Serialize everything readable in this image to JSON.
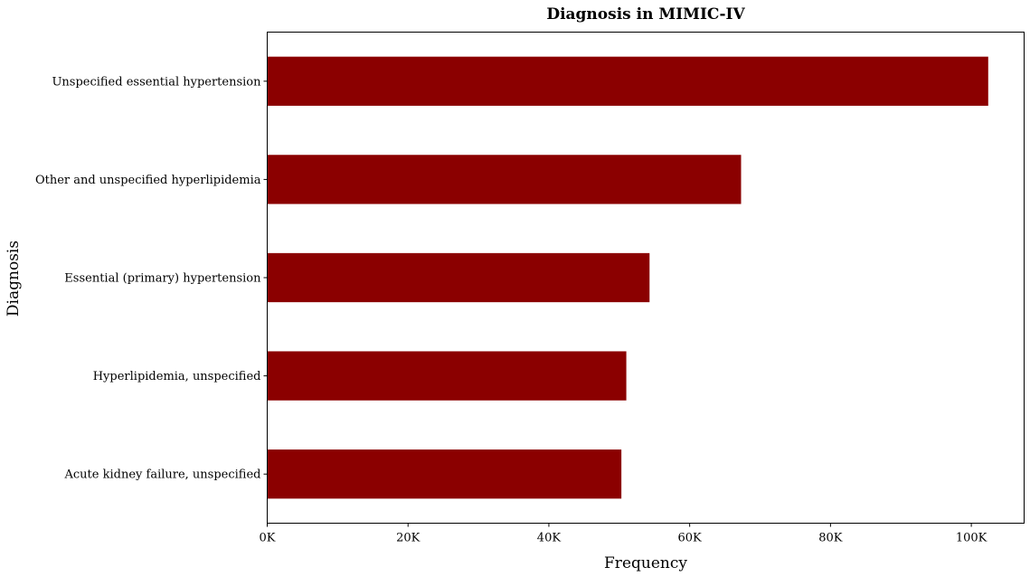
{
  "chart_data": {
    "type": "bar",
    "orientation": "horizontal",
    "title": "Diagnosis in MIMIC-IV",
    "xlabel": "Frequency",
    "ylabel": "Diagnosis",
    "categories": [
      "Unspecified essential hypertension",
      "Other and unspecified hyperlipidemia",
      "Essential (primary) hypertension",
      "Hyperlipidemia, unspecified",
      "Acute kidney failure, unspecified"
    ],
    "values": [
      102400,
      67300,
      54300,
      51000,
      50300
    ],
    "xlim": [
      0,
      107500
    ],
    "xticks": [
      0,
      20000,
      40000,
      60000,
      80000,
      100000
    ],
    "xtick_labels": [
      "0K",
      "20K",
      "40K",
      "60K",
      "80K",
      "100K"
    ],
    "bar_color": "#8b0000",
    "grid": false,
    "legend": "none"
  }
}
